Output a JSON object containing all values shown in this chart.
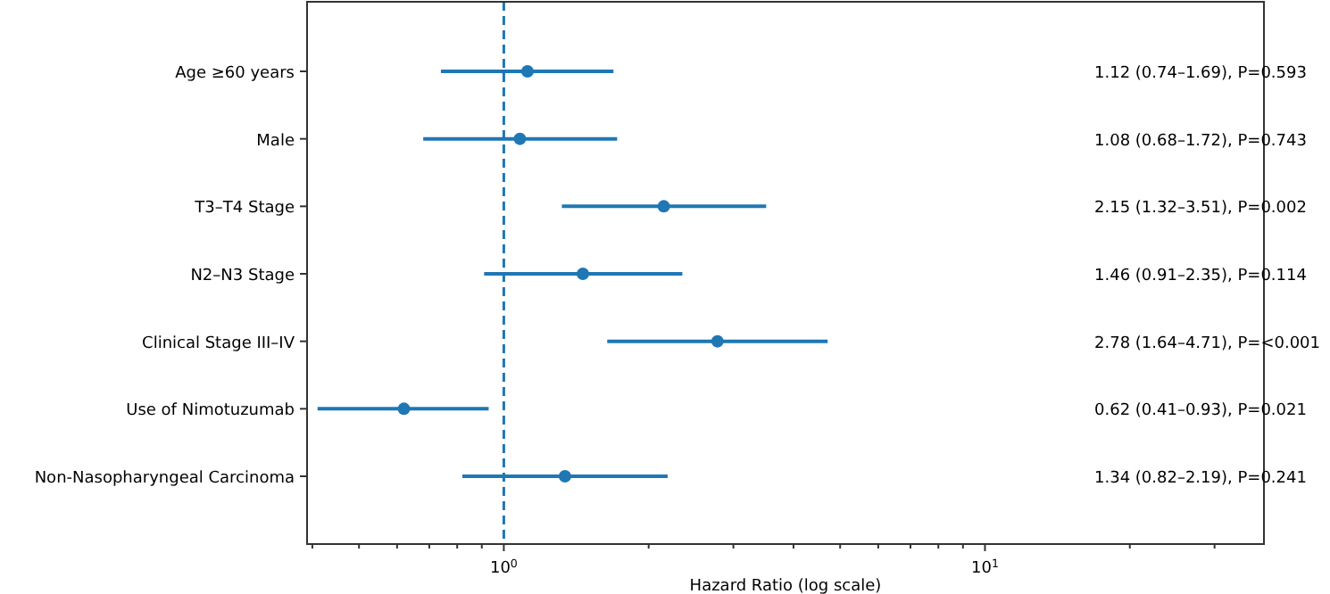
{
  "chart_data": {
    "type": "scatter",
    "orientation": "horizontal",
    "xlabel": "Hazard Ratio (log scale)",
    "log": "x",
    "marker": "circle",
    "grid": false,
    "categories": [
      "Age ≥60 years",
      "Male",
      "T3–T4 Stage",
      "N2–N3 Stage",
      "Clinical Stage III–IV",
      "Use of Nimotuzumab",
      "Non-Nasopharyngeal Carcinoma"
    ],
    "series": [
      {
        "color": "#1f77b4",
        "values": [
          1.12,
          1.08,
          2.15,
          1.46,
          2.78,
          0.62,
          1.34
        ],
        "errors": [
          [
            0.74,
            1.69
          ],
          [
            0.68,
            1.72
          ],
          [
            1.32,
            3.51
          ],
          [
            0.91,
            2.35
          ],
          [
            1.64,
            4.71
          ],
          [
            0.41,
            0.93
          ],
          [
            0.82,
            2.19
          ]
        ]
      }
    ],
    "annotations": [
      "1.12 (0.74–1.69), P=0.593",
      "1.08 (0.68–1.72), P=0.743",
      "2.15 (1.32–3.51), P=0.002",
      "1.46 (0.91–2.35), P=0.114",
      "2.78 (1.64–4.71), P=<0.001",
      "0.62 (0.41–0.93), P=0.021",
      "1.34 (0.82–2.19), P=0.241"
    ],
    "xlim": [
      0.39,
      38
    ],
    "xticks": [
      {
        "value": 0.4,
        "label": null
      },
      {
        "value": 0.5,
        "label": null
      },
      {
        "value": 0.6,
        "label": null
      },
      {
        "value": 0.7,
        "label": null
      },
      {
        "value": 0.8,
        "label": null
      },
      {
        "value": 0.9,
        "label": null
      },
      {
        "value": 1,
        "label": "10$^{0}$"
      },
      {
        "value": 2,
        "label": null
      },
      {
        "value": 3,
        "label": null
      },
      {
        "value": 4,
        "label": null
      },
      {
        "value": 5,
        "label": null
      },
      {
        "value": 6,
        "label": null
      },
      {
        "value": 7,
        "label": null
      },
      {
        "value": 8,
        "label": null
      },
      {
        "value": 9,
        "label": null
      },
      {
        "value": 10,
        "label": "10$^{1}$"
      },
      {
        "value": 20,
        "label": null
      },
      {
        "value": 30,
        "label": null
      }
    ],
    "ref_lines": [
      {
        "axis": "x",
        "value": 1,
        "label": null,
        "color": "#1f77b4",
        "line_style": "dashed"
      }
    ]
  }
}
